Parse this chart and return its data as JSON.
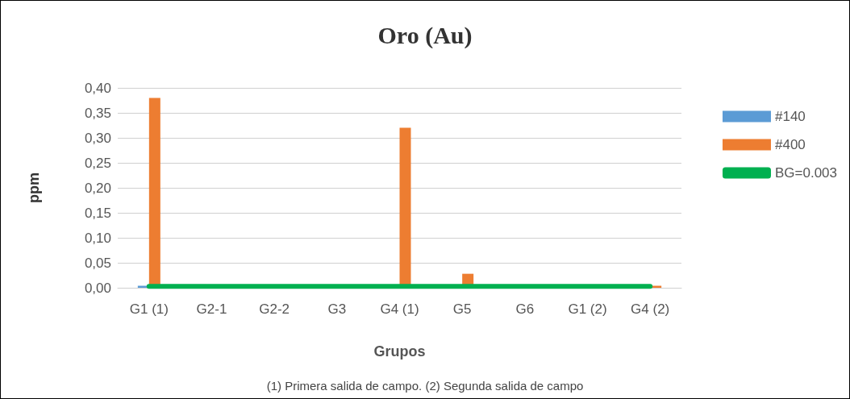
{
  "chart_data": {
    "type": "bar",
    "title": "Oro (Au)",
    "xlabel": "Grupos",
    "ylabel": "ppm",
    "categories": [
      "G1 (1)",
      "G2-1",
      "G2-2",
      "G3",
      "G4 (1)",
      "G5",
      "G6",
      "G1 (2)",
      "G4 (2)"
    ],
    "series": [
      {
        "name": "#140",
        "color": "#5b9bd5",
        "values": [
          0.004,
          0,
          0,
          0,
          0,
          0,
          0,
          0,
          0
        ]
      },
      {
        "name": "#400",
        "color": "#ed7d31",
        "values": [
          0.38,
          0,
          0,
          0,
          0.32,
          0.028,
          0,
          0,
          0.004
        ]
      },
      {
        "name": "BG=0.003",
        "type": "line",
        "color": "#00b050",
        "values": [
          0.003,
          0.003,
          0.003,
          0.003,
          0.003,
          0.003,
          0.003,
          0.003,
          0.003
        ]
      }
    ],
    "ylim": [
      0,
      0.4
    ],
    "yticks": [
      {
        "value": 0,
        "label": "0,00"
      },
      {
        "value": 0.05,
        "label": "0,05"
      },
      {
        "value": 0.1,
        "label": "0,10"
      },
      {
        "value": 0.15,
        "label": "0,15"
      },
      {
        "value": 0.2,
        "label": "0,20"
      },
      {
        "value": 0.25,
        "label": "0,25"
      },
      {
        "value": 0.3,
        "label": "0,30"
      },
      {
        "value": 0.35,
        "label": "0,35"
      },
      {
        "value": 0.4,
        "label": "0,40"
      }
    ],
    "grid": "y",
    "legend": "right",
    "marker": "none",
    "annotations": [
      "(1) Primera salida de campo. (2) Segunda salida de campo"
    ]
  }
}
